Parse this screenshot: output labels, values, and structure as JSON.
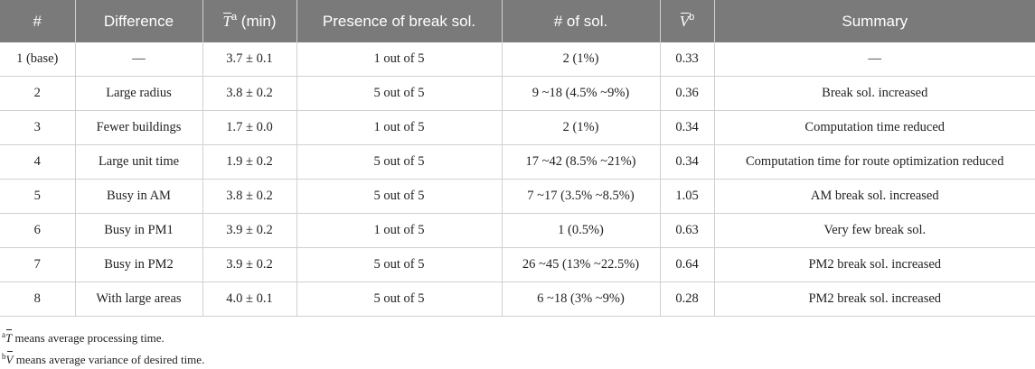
{
  "table": {
    "headers": [
      {
        "text": "#"
      },
      {
        "text": "Difference"
      },
      {
        "sym": "T",
        "sup": "a",
        "text": " (min)"
      },
      {
        "text": "Presence of break sol."
      },
      {
        "text": "# of sol."
      },
      {
        "sym": "V",
        "sup": "b",
        "text": ""
      },
      {
        "text": "Summary"
      }
    ],
    "rows": [
      [
        "1 (base)",
        "—",
        "3.7 ± 0.1",
        "1 out of 5",
        "2 (1%)",
        "0.33",
        "—"
      ],
      [
        "2",
        "Large radius",
        "3.8 ± 0.2",
        "5 out of 5",
        "9 ~18 (4.5% ~9%)",
        "0.36",
        "Break sol. increased"
      ],
      [
        "3",
        "Fewer buildings",
        "1.7 ± 0.0",
        "1 out of 5",
        "2 (1%)",
        "0.34",
        "Computation time reduced"
      ],
      [
        "4",
        "Large unit time",
        "1.9 ± 0.2",
        "5 out of 5",
        "17 ~42 (8.5% ~21%)",
        "0.34",
        "Computation time for route optimization reduced"
      ],
      [
        "5",
        "Busy in AM",
        "3.8 ± 0.2",
        "5 out of 5",
        "7 ~17 (3.5% ~8.5%)",
        "1.05",
        "AM break sol. increased"
      ],
      [
        "6",
        "Busy in PM1",
        "3.9 ± 0.2",
        "1 out of 5",
        "1 (0.5%)",
        "0.63",
        "Very few break sol."
      ],
      [
        "7",
        "Busy in PM2",
        "3.9 ± 0.2",
        "5 out of 5",
        "26 ~45 (13% ~22.5%)",
        "0.64",
        "PM2 break sol. increased"
      ],
      [
        "8",
        "With large areas",
        "4.0 ± 0.1",
        "5 out of 5",
        "6 ~18 (3% ~9%)",
        "0.28",
        "PM2 break sol. increased"
      ]
    ]
  },
  "footnotes": {
    "a": {
      "mark": "a",
      "sym": "T",
      "text": " means average processing time."
    },
    "b": {
      "mark": "b",
      "sym": "V",
      "text": " means average variance of desired time."
    }
  }
}
